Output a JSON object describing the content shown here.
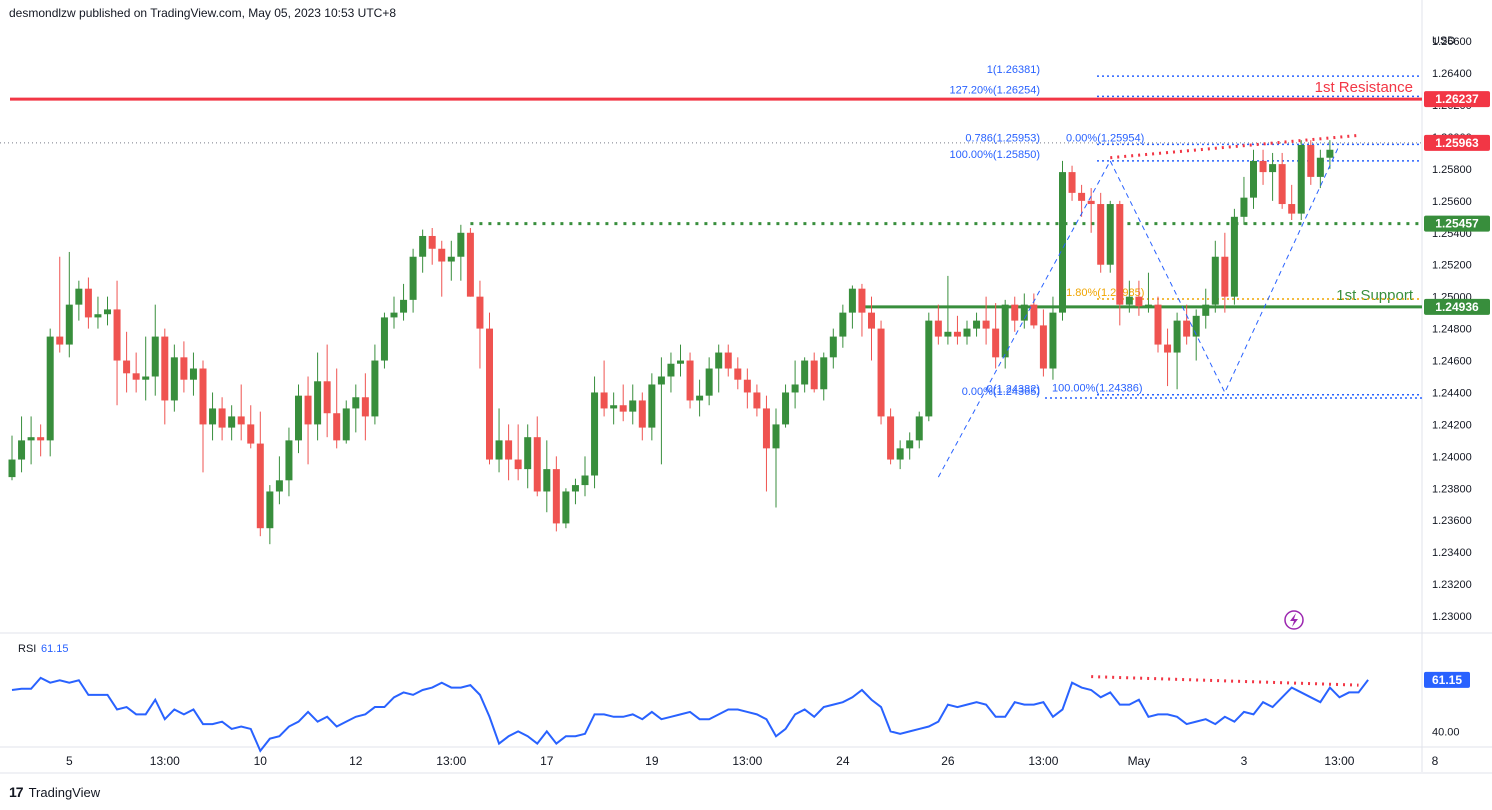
{
  "header": {
    "published": "desmondlzw published on TradingView.com, May 05, 2023 10:53 UTC+8"
  },
  "footer": {
    "brand": "TradingView",
    "logo_mark": "17"
  },
  "colors": {
    "up": "#388e3c",
    "down": "#ef5350",
    "resistance": "#f23645",
    "support": "#388e3c",
    "fib": "#2962ff",
    "rsi": "#2962ff",
    "diverge": "#f23645",
    "golden": "#f0a500"
  },
  "chart_data": [
    {
      "type": "candlestick",
      "title": "",
      "currency_label": "USD",
      "ylim": [
        1.229,
        1.2672
      ],
      "y_ticks": [
        "1.26600",
        "1.26400",
        "1.26200",
        "1.26000",
        "1.25800",
        "1.25600",
        "1.25400",
        "1.25200",
        "1.25000",
        "1.24800",
        "1.24600",
        "1.24400",
        "1.24200",
        "1.24000",
        "1.23800",
        "1.23600",
        "1.23400",
        "1.23200",
        "1.23000"
      ],
      "x_ticks": [
        {
          "label": "5",
          "index": 6
        },
        {
          "label": "13:00",
          "index": 16
        },
        {
          "label": "10",
          "index": 26
        },
        {
          "label": "12",
          "index": 36
        },
        {
          "label": "13:00",
          "index": 46
        },
        {
          "label": "17",
          "index": 56
        },
        {
          "label": "19",
          "index": 67
        },
        {
          "label": "13:00",
          "index": 77
        },
        {
          "label": "24",
          "index": 87
        },
        {
          "label": "26",
          "index": 98
        },
        {
          "label": "13:00",
          "index": 108
        },
        {
          "label": "May",
          "index": 118
        },
        {
          "label": "3",
          "index": 129
        },
        {
          "label": "13:00",
          "index": 139
        },
        {
          "label": "8",
          "index": 149
        }
      ],
      "candles": [
        [
          1.2387,
          1.2413,
          1.2385,
          1.2398
        ],
        [
          1.2398,
          1.2425,
          1.239,
          1.241
        ],
        [
          1.241,
          1.2425,
          1.2395,
          1.2412
        ],
        [
          1.2412,
          1.242,
          1.24,
          1.241
        ],
        [
          1.241,
          1.248,
          1.24,
          1.2475
        ],
        [
          1.2475,
          1.2525,
          1.2465,
          1.247
        ],
        [
          1.247,
          1.2528,
          1.2462,
          1.2495
        ],
        [
          1.2495,
          1.251,
          1.2485,
          1.2505
        ],
        [
          1.2505,
          1.2512,
          1.248,
          1.2487
        ],
        [
          1.2487,
          1.25,
          1.248,
          1.2489
        ],
        [
          1.2489,
          1.25,
          1.2482,
          1.2492
        ],
        [
          1.2492,
          1.251,
          1.2432,
          1.246
        ],
        [
          1.246,
          1.2478,
          1.244,
          1.2452
        ],
        [
          1.2452,
          1.2465,
          1.244,
          1.2448
        ],
        [
          1.2448,
          1.2475,
          1.2435,
          1.245
        ],
        [
          1.245,
          1.2495,
          1.2438,
          1.2475
        ],
        [
          1.2475,
          1.248,
          1.242,
          1.2435
        ],
        [
          1.2435,
          1.247,
          1.2428,
          1.2462
        ],
        [
          1.2462,
          1.2472,
          1.244,
          1.2448
        ],
        [
          1.2448,
          1.2465,
          1.2438,
          1.2455
        ],
        [
          1.2455,
          1.246,
          1.239,
          1.242
        ],
        [
          1.242,
          1.244,
          1.241,
          1.243
        ],
        [
          1.243,
          1.2437,
          1.241,
          1.2418
        ],
        [
          1.2418,
          1.2432,
          1.241,
          1.2425
        ],
        [
          1.2425,
          1.2445,
          1.241,
          1.242
        ],
        [
          1.242,
          1.2432,
          1.2405,
          1.2408
        ],
        [
          1.2408,
          1.2428,
          1.235,
          1.2355
        ],
        [
          1.2355,
          1.2382,
          1.2345,
          1.2378
        ],
        [
          1.2378,
          1.24,
          1.237,
          1.2385
        ],
        [
          1.2385,
          1.2418,
          1.2375,
          1.241
        ],
        [
          1.241,
          1.2445,
          1.2402,
          1.2438
        ],
        [
          1.2438,
          1.245,
          1.2395,
          1.242
        ],
        [
          1.242,
          1.2465,
          1.241,
          1.2447
        ],
        [
          1.2447,
          1.247,
          1.2412,
          1.2427
        ],
        [
          1.2427,
          1.2455,
          1.2405,
          1.241
        ],
        [
          1.241,
          1.2435,
          1.2408,
          1.243
        ],
        [
          1.243,
          1.2445,
          1.2415,
          1.2437
        ],
        [
          1.2437,
          1.2452,
          1.241,
          1.2425
        ],
        [
          1.2425,
          1.247,
          1.242,
          1.246
        ],
        [
          1.246,
          1.249,
          1.2455,
          1.2487
        ],
        [
          1.2487,
          1.25,
          1.248,
          1.249
        ],
        [
          1.249,
          1.2508,
          1.2485,
          1.2498
        ],
        [
          1.2498,
          1.253,
          1.249,
          1.2525
        ],
        [
          1.2525,
          1.2542,
          1.2515,
          1.2538
        ],
        [
          1.2538,
          1.2543,
          1.252,
          1.253
        ],
        [
          1.253,
          1.2535,
          1.25,
          1.2522
        ],
        [
          1.2522,
          1.2535,
          1.251,
          1.2525
        ],
        [
          1.2525,
          1.2545,
          1.251,
          1.254
        ],
        [
          1.254,
          1.2543,
          1.25,
          1.25
        ],
        [
          1.25,
          1.251,
          1.2455,
          1.248
        ],
        [
          1.248,
          1.249,
          1.2395,
          1.2398
        ],
        [
          1.2398,
          1.243,
          1.239,
          1.241
        ],
        [
          1.241,
          1.242,
          1.2385,
          1.2398
        ],
        [
          1.2398,
          1.242,
          1.2385,
          1.2392
        ],
        [
          1.2392,
          1.242,
          1.238,
          1.2412
        ],
        [
          1.2412,
          1.2425,
          1.2375,
          1.2378
        ],
        [
          1.2378,
          1.241,
          1.2365,
          1.2392
        ],
        [
          1.2392,
          1.24,
          1.2353,
          1.2358
        ],
        [
          1.2358,
          1.238,
          1.2355,
          1.2378
        ],
        [
          1.2378,
          1.2386,
          1.237,
          1.2382
        ],
        [
          1.2382,
          1.24,
          1.2375,
          1.2388
        ],
        [
          1.2388,
          1.245,
          1.238,
          1.244
        ],
        [
          1.244,
          1.246,
          1.2425,
          1.243
        ],
        [
          1.243,
          1.244,
          1.242,
          1.2432
        ],
        [
          1.2432,
          1.2445,
          1.2422,
          1.2428
        ],
        [
          1.2428,
          1.2445,
          1.242,
          1.2435
        ],
        [
          1.2435,
          1.244,
          1.241,
          1.2418
        ],
        [
          1.2418,
          1.2452,
          1.241,
          1.2445
        ],
        [
          1.2445,
          1.2462,
          1.2395,
          1.245
        ],
        [
          1.245,
          1.2465,
          1.244,
          1.2458
        ],
        [
          1.2458,
          1.247,
          1.245,
          1.246
        ],
        [
          1.246,
          1.2465,
          1.243,
          1.2435
        ],
        [
          1.2435,
          1.2448,
          1.2425,
          1.2438
        ],
        [
          1.2438,
          1.2462,
          1.2432,
          1.2455
        ],
        [
          1.2455,
          1.247,
          1.244,
          1.2465
        ],
        [
          1.2465,
          1.247,
          1.245,
          1.2455
        ],
        [
          1.2455,
          1.2462,
          1.2442,
          1.2448
        ],
        [
          1.2448,
          1.2455,
          1.243,
          1.244
        ],
        [
          1.244,
          1.2445,
          1.2425,
          1.243
        ],
        [
          1.243,
          1.2438,
          1.2378,
          1.2405
        ],
        [
          1.2405,
          1.243,
          1.2368,
          1.242
        ],
        [
          1.242,
          1.2445,
          1.2418,
          1.244
        ],
        [
          1.244,
          1.246,
          1.243,
          1.2445
        ],
        [
          1.2445,
          1.2462,
          1.244,
          1.246
        ],
        [
          1.246,
          1.2465,
          1.244,
          1.2442
        ],
        [
          1.2442,
          1.2465,
          1.2435,
          1.2462
        ],
        [
          1.2462,
          1.248,
          1.2455,
          1.2475
        ],
        [
          1.2475,
          1.2495,
          1.2468,
          1.249
        ],
        [
          1.249,
          1.2507,
          1.248,
          1.2505
        ],
        [
          1.2505,
          1.2508,
          1.2475,
          1.249
        ],
        [
          1.249,
          1.25,
          1.246,
          1.248
        ],
        [
          1.248,
          1.2485,
          1.242,
          1.2425
        ],
        [
          1.2425,
          1.243,
          1.2395,
          1.2398
        ],
        [
          1.2398,
          1.241,
          1.2392,
          1.2405
        ],
        [
          1.2405,
          1.2415,
          1.2398,
          1.241
        ],
        [
          1.241,
          1.2428,
          1.2405,
          1.2425
        ],
        [
          1.2425,
          1.249,
          1.2422,
          1.2485
        ],
        [
          1.2485,
          1.2495,
          1.247,
          1.2475
        ],
        [
          1.2475,
          1.2513,
          1.247,
          1.2478
        ],
        [
          1.2478,
          1.2488,
          1.247,
          1.2475
        ],
        [
          1.2475,
          1.2485,
          1.247,
          1.248
        ],
        [
          1.248,
          1.249,
          1.2475,
          1.2485
        ],
        [
          1.2485,
          1.25,
          1.247,
          1.248
        ],
        [
          1.248,
          1.2496,
          1.2455,
          1.2462
        ],
        [
          1.2462,
          1.2498,
          1.2455,
          1.2495
        ],
        [
          1.2495,
          1.25,
          1.2478,
          1.2485
        ],
        [
          1.2485,
          1.2502,
          1.248,
          1.2495
        ],
        [
          1.2495,
          1.2502,
          1.248,
          1.2482
        ],
        [
          1.2482,
          1.2492,
          1.245,
          1.2455
        ],
        [
          1.2455,
          1.25,
          1.2448,
          1.249
        ],
        [
          1.249,
          1.2585,
          1.2485,
          1.2578
        ],
        [
          1.2578,
          1.2582,
          1.256,
          1.2565
        ],
        [
          1.2565,
          1.257,
          1.255,
          1.256
        ],
        [
          1.256,
          1.2568,
          1.254,
          1.2558
        ],
        [
          1.2558,
          1.2565,
          1.2515,
          1.252
        ],
        [
          1.252,
          1.256,
          1.2515,
          1.2558
        ],
        [
          1.2558,
          1.256,
          1.2482,
          1.2495
        ],
        [
          1.2495,
          1.251,
          1.249,
          1.25
        ],
        [
          1.25,
          1.251,
          1.2488,
          1.2494
        ],
        [
          1.2494,
          1.2515,
          1.249,
          1.2495
        ],
        [
          1.2495,
          1.25,
          1.2465,
          1.247
        ],
        [
          1.247,
          1.248,
          1.2444,
          1.2465
        ],
        [
          1.2465,
          1.249,
          1.2442,
          1.2485
        ],
        [
          1.2485,
          1.2495,
          1.247,
          1.2475
        ],
        [
          1.2475,
          1.2492,
          1.246,
          1.2488
        ],
        [
          1.2488,
          1.2505,
          1.248,
          1.2495
        ],
        [
          1.2495,
          1.2535,
          1.249,
          1.2525
        ],
        [
          1.2525,
          1.254,
          1.249,
          1.25
        ],
        [
          1.25,
          1.2555,
          1.2495,
          1.255
        ],
        [
          1.255,
          1.2575,
          1.2545,
          1.2562
        ],
        [
          1.2562,
          1.2592,
          1.2555,
          1.2585
        ],
        [
          1.2585,
          1.2592,
          1.257,
          1.2578
        ],
        [
          1.2578,
          1.259,
          1.256,
          1.2583
        ],
        [
          1.2583,
          1.259,
          1.2555,
          1.2558
        ],
        [
          1.2558,
          1.257,
          1.2548,
          1.2552
        ],
        [
          1.2552,
          1.2598,
          1.2548,
          1.2595
        ],
        [
          1.2595,
          1.2598,
          1.257,
          1.2575
        ],
        [
          1.2575,
          1.2592,
          1.2568,
          1.2587
        ],
        [
          1.2587,
          1.2598,
          1.258,
          1.2592
        ]
      ],
      "levels": {
        "resistance": {
          "value": 1.26237,
          "text": "1st Resistance",
          "price_label": "1.26237"
        },
        "support": {
          "value": 1.24936,
          "text": "1st Support",
          "price_label": "1.24936"
        },
        "dotted_support": {
          "value": 1.25457,
          "price_label": "1.25457"
        },
        "current": {
          "value": 1.25963,
          "price_label": "1.25963"
        }
      },
      "fib_labels": [
        {
          "text": "1(1.26381)",
          "value": 1.26381
        },
        {
          "text": "127.20%(1.26254)",
          "value": 1.26254
        },
        {
          "text": "0.786(1.25953)",
          "value": 1.25953
        },
        {
          "text": "0.00%(1.25954)",
          "value": 1.25954
        },
        {
          "text": "100.00%(1.25850)",
          "value": 1.2585
        },
        {
          "text": "61.80%(1.24985)",
          "value": 1.24985
        },
        {
          "text": "0(1.24382)",
          "value": 1.24382
        },
        {
          "text": "0.00%(1.24365)",
          "value": 1.24365
        },
        {
          "text": "100.00%(1.24386)",
          "value": 1.24386
        }
      ],
      "pattern_points": [
        {
          "index": 97,
          "value": 1.2387
        },
        {
          "index": 115,
          "value": 1.2585
        },
        {
          "index": 127,
          "value": 1.244
        },
        {
          "index": 139,
          "value": 1.2595
        }
      ]
    },
    {
      "type": "line",
      "title": "RSI",
      "legend_value": "61.15",
      "last_value_label": "61.15",
      "y_tick": "40.00",
      "ylim": [
        34,
        80
      ],
      "values": [
        57,
        57.5,
        57.5,
        62,
        60,
        61,
        60,
        61,
        55,
        55,
        55,
        49,
        50,
        47,
        47,
        53,
        45,
        49,
        47,
        49,
        43,
        43,
        44,
        41,
        42,
        41,
        32,
        37,
        38,
        42,
        44,
        48,
        44,
        46,
        42,
        44,
        46,
        47,
        50,
        50,
        54,
        56,
        55,
        57,
        58,
        60,
        58,
        58,
        59,
        55,
        46,
        35,
        38,
        40,
        38,
        35,
        40,
        35,
        38,
        38,
        39,
        47,
        47,
        46,
        46,
        47,
        45,
        48,
        45,
        46,
        47,
        48,
        45,
        45,
        47,
        49,
        49,
        48,
        47,
        45,
        38,
        41,
        47,
        49,
        46,
        50,
        51,
        52,
        54,
        57,
        53,
        50,
        40,
        39,
        40,
        41,
        42,
        44,
        51,
        50,
        51,
        52,
        51,
        46,
        46,
        52,
        51,
        51,
        52,
        46,
        49,
        60,
        58,
        57,
        54,
        56,
        51,
        51,
        53,
        46,
        47,
        47,
        46,
        43,
        44,
        45,
        43,
        46,
        44,
        48,
        47,
        52,
        50,
        54,
        58,
        56,
        54,
        52,
        58,
        54,
        56,
        56,
        61.15
      ],
      "divergence": {
        "from": {
          "index": 113,
          "value": 62.5
        },
        "to": {
          "index": 141,
          "value": 59
        }
      }
    }
  ]
}
